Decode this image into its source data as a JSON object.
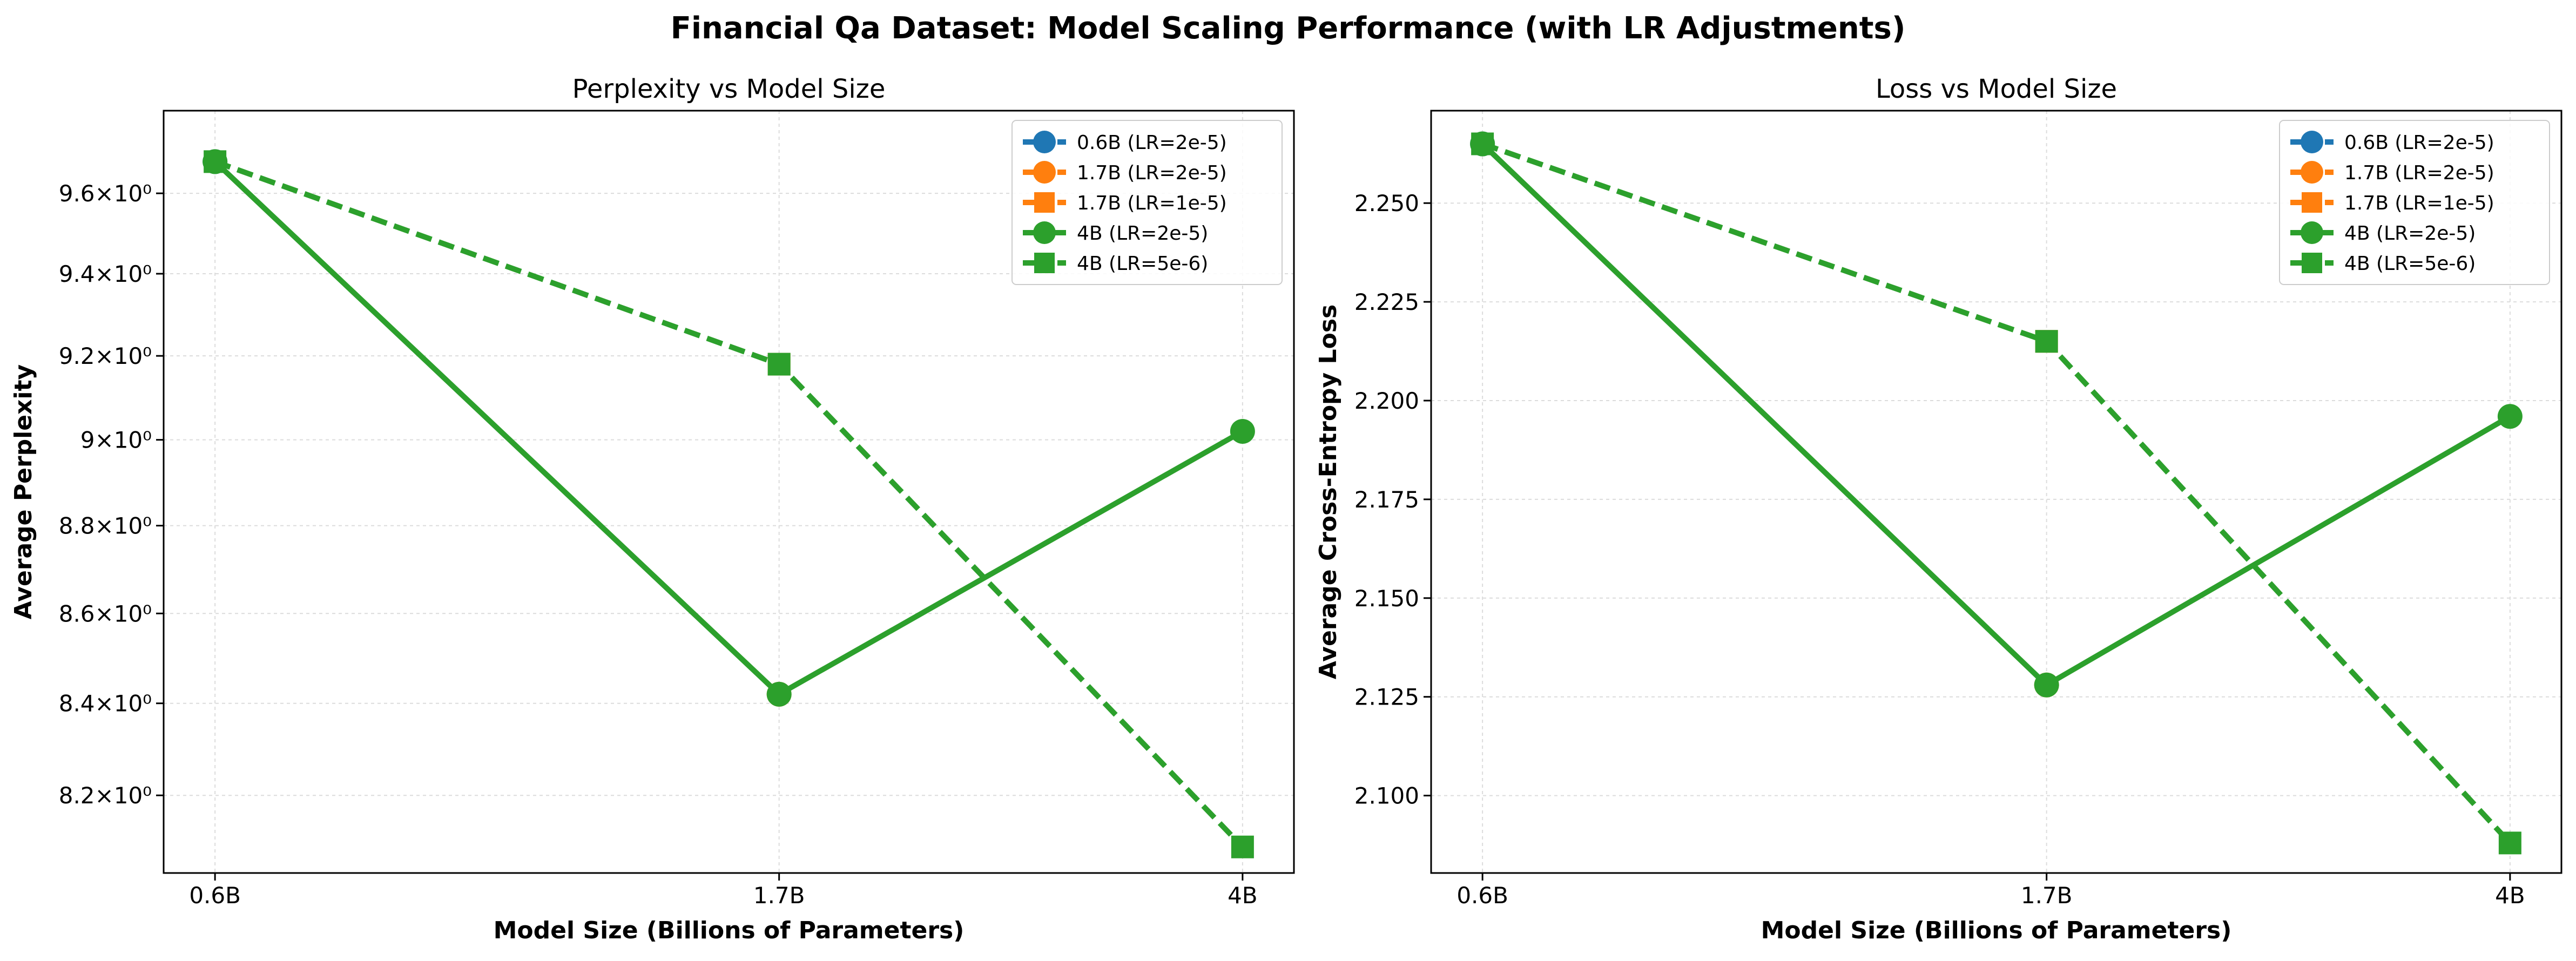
{
  "figure": {
    "title": "Financial Qa Dataset: Model Scaling Performance (with LR Adjustments)"
  },
  "colors": {
    "blue": "#1f77b4",
    "orange": "#ff7f0e",
    "green": "#2ca02c"
  },
  "chart_data": [
    {
      "type": "line",
      "title": "Perplexity vs Model Size",
      "xlabel": "Model Size (Billions of Parameters)",
      "ylabel": "Average Perplexity",
      "x_scale": "log",
      "y_scale": "log",
      "categories": [
        "0.6B",
        "1.7B",
        "4B"
      ],
      "x_values": [
        0.6,
        1.7,
        4.0
      ],
      "yticks": [
        8.2,
        8.4,
        8.6,
        8.8,
        9.0,
        9.2,
        9.4,
        9.6
      ],
      "ytick_labels": [
        "8.2×10⁰",
        "8.4×10⁰",
        "8.6×10⁰",
        "8.8×10⁰",
        "9×10⁰",
        "9.2×10⁰",
        "9.4×10⁰",
        "9.6×10⁰"
      ],
      "ylim": [
        8.035,
        9.81
      ],
      "grid": true,
      "legend_position": "upper right",
      "series": [
        {
          "name": "0.6B (LR=2e-5)",
          "color": "blue",
          "style": "dashed",
          "marker": "circle",
          "values": [
            9.68,
            null,
            null
          ]
        },
        {
          "name": "1.7B (LR=2e-5)",
          "color": "orange",
          "style": "dashed",
          "marker": "circle",
          "values": [
            null,
            8.42,
            null
          ]
        },
        {
          "name": "1.7B (LR=1e-5)",
          "color": "orange",
          "style": "dashed",
          "marker": "square",
          "values": [
            null,
            9.18,
            null
          ]
        },
        {
          "name": "4B (LR=2e-5)",
          "color": "green",
          "style": "solid",
          "marker": "circle",
          "values": [
            9.68,
            8.42,
            9.02
          ]
        },
        {
          "name": "4B (LR=5e-6)",
          "color": "green",
          "style": "dashed",
          "marker": "square",
          "values": [
            9.68,
            9.18,
            8.09
          ]
        }
      ]
    },
    {
      "type": "line",
      "title": "Loss vs Model Size",
      "xlabel": "Model Size (Billions of Parameters)",
      "ylabel": "Average Cross-Entropy Loss",
      "x_scale": "log",
      "y_scale": "linear",
      "categories": [
        "0.6B",
        "1.7B",
        "4B"
      ],
      "x_values": [
        0.6,
        1.7,
        4.0
      ],
      "yticks": [
        2.1,
        2.125,
        2.15,
        2.175,
        2.2,
        2.225,
        2.25
      ],
      "ytick_labels": [
        "2.100",
        "2.125",
        "2.150",
        "2.175",
        "2.200",
        "2.225",
        "2.250"
      ],
      "ylim": [
        2.0804,
        2.2734
      ],
      "grid": true,
      "legend_position": "upper right",
      "series": [
        {
          "name": "0.6B (LR=2e-5)",
          "color": "blue",
          "style": "dashed",
          "marker": "circle",
          "values": [
            2.265,
            null,
            null
          ]
        },
        {
          "name": "1.7B (LR=2e-5)",
          "color": "orange",
          "style": "dashed",
          "marker": "circle",
          "values": [
            null,
            2.128,
            null
          ]
        },
        {
          "name": "1.7B (LR=1e-5)",
          "color": "orange",
          "style": "dashed",
          "marker": "square",
          "values": [
            null,
            2.215,
            null
          ]
        },
        {
          "name": "4B (LR=2e-5)",
          "color": "green",
          "style": "solid",
          "marker": "circle",
          "values": [
            2.265,
            2.128,
            2.196
          ]
        },
        {
          "name": "4B (LR=5e-6)",
          "color": "green",
          "style": "dashed",
          "marker": "square",
          "values": [
            2.265,
            2.215,
            2.088
          ]
        }
      ]
    }
  ]
}
